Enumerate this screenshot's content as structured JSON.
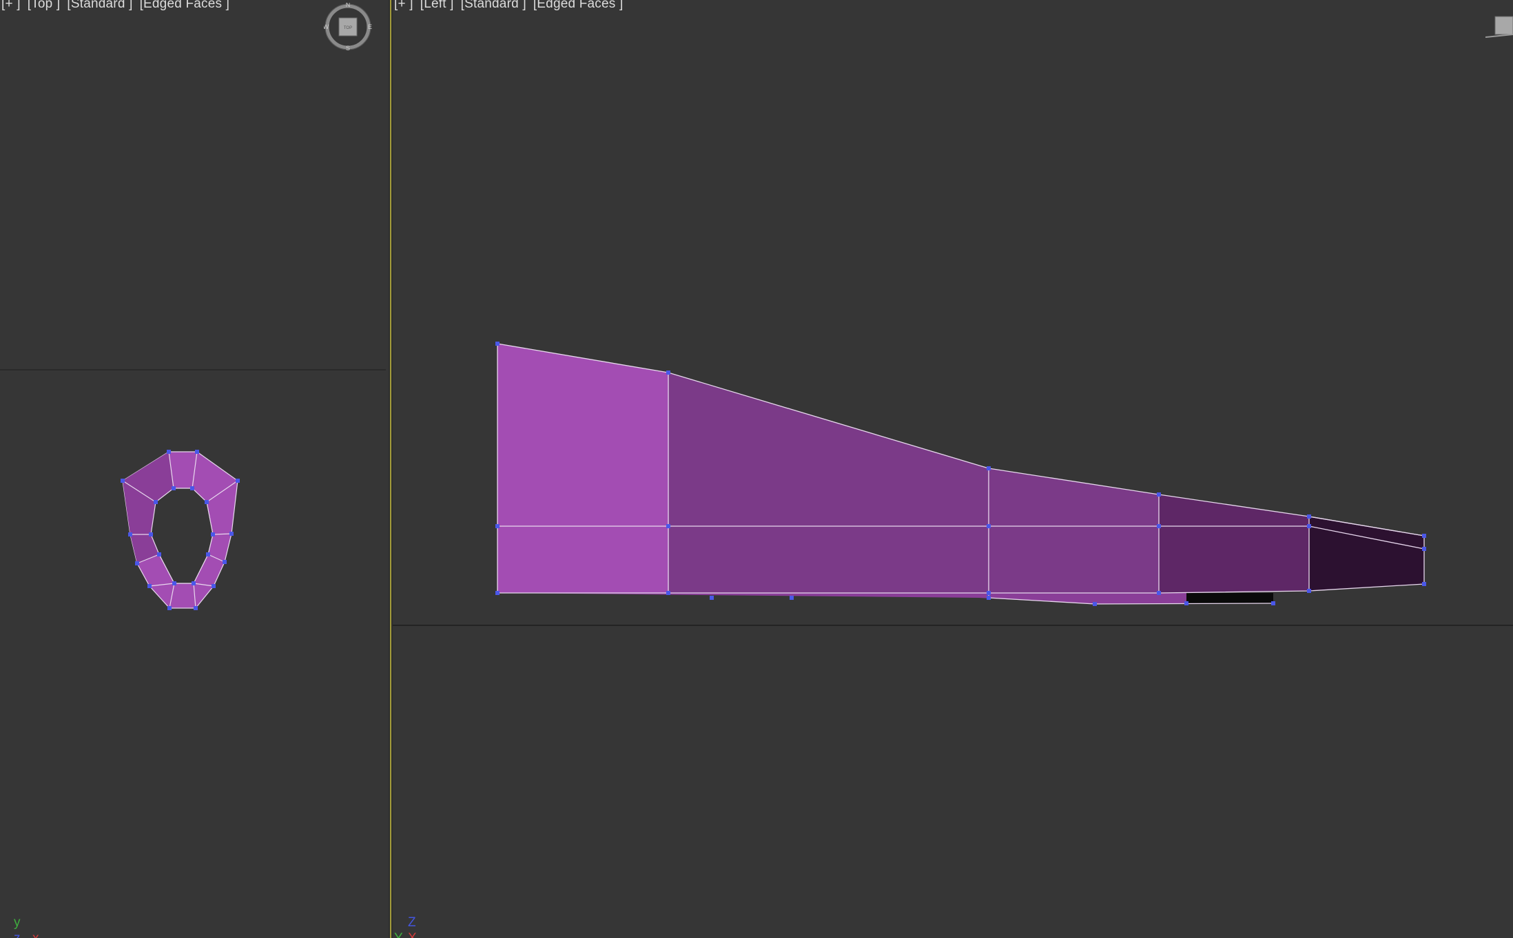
{
  "viewports": {
    "top": {
      "label": {
        "plus": "[+ ]",
        "view": "[Top ]",
        "shading": "[Standard ]",
        "style": "[Edged Faces ]"
      },
      "compass": {
        "n": "N",
        "s": "S",
        "e": "E",
        "w": "W",
        "cube": "TOP"
      },
      "axis": {
        "vertical": "y",
        "horizontal": "x",
        "depth": "z"
      }
    },
    "left": {
      "label": {
        "plus": "[+ ]",
        "view": "[Left ]",
        "shading": "[Standard ]",
        "style": "[Edged Faces ]"
      },
      "axis": {
        "vertical": "Z",
        "horizontal": "Y",
        "depth": "X"
      }
    }
  },
  "colors": {
    "background": "#363636",
    "mesh_light": "#a34db3",
    "mesh_mid": "#7b3a88",
    "mesh_dark": "#5e2766",
    "mesh_darkest": "#2c1130",
    "vertex": "#4a57e8",
    "edge": "#e8d8ee",
    "grid_line": "#1f1f1f",
    "active_border": "#a29a3a"
  }
}
